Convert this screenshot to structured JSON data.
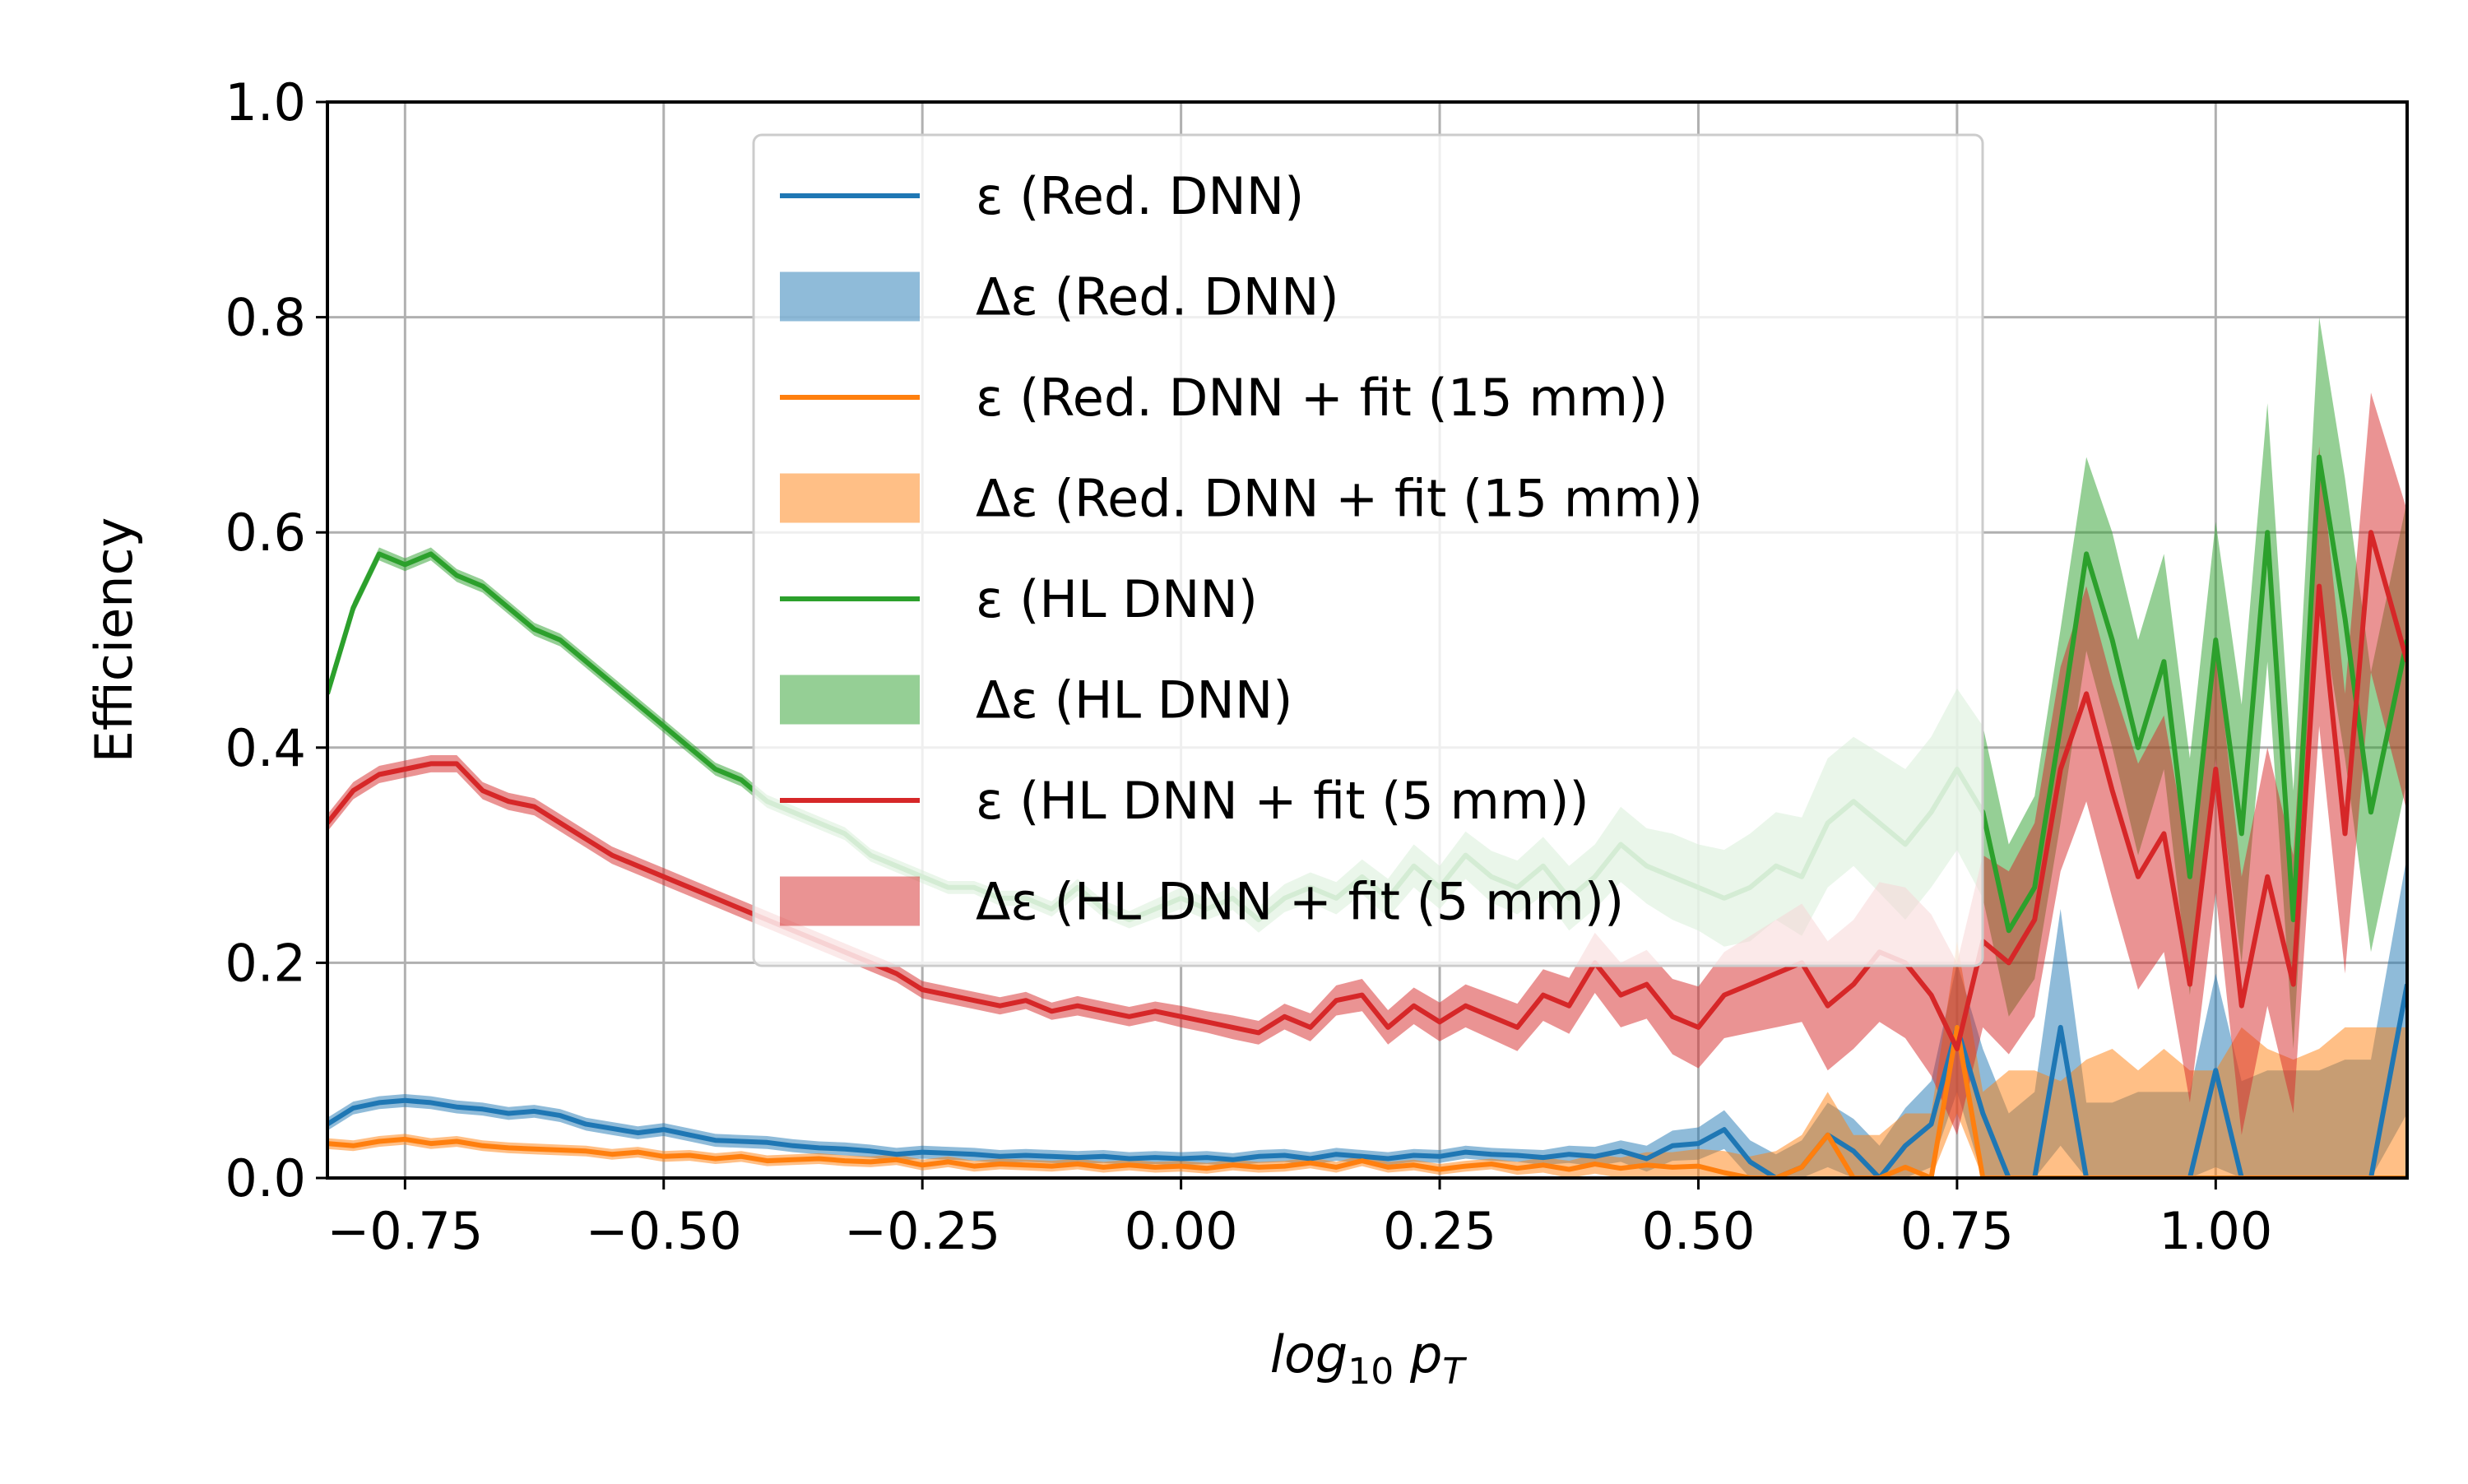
{
  "chart_data": {
    "type": "line",
    "xlabel": "log10 pT",
    "xlabel_parts": {
      "base": "log",
      "sub": "10",
      "var": "p",
      "var_sub": "T"
    },
    "ylabel": "Efficiency",
    "xlim": [
      -0.825,
      1.185
    ],
    "ylim": [
      0.0,
      1.0
    ],
    "xticks": [
      -0.75,
      -0.5,
      -0.25,
      0.0,
      0.25,
      0.5,
      0.75,
      1.0
    ],
    "xtick_labels": [
      "−0.75",
      "−0.50",
      "−0.25",
      "0.00",
      "0.25",
      "0.50",
      "0.75",
      "1.00"
    ],
    "yticks": [
      0.0,
      0.2,
      0.4,
      0.6,
      0.8,
      1.0
    ],
    "ytick_labels": [
      "0.0",
      "0.2",
      "0.4",
      "0.6",
      "0.8",
      "1.0"
    ],
    "grid": true,
    "legend_position": "top-center",
    "legend": [
      {
        "label": "ε (Red. DNN)",
        "kind": "line",
        "series": 0
      },
      {
        "label": "Δε (Red. DNN)",
        "kind": "band",
        "series": 0
      },
      {
        "label": "ε (Red. DNN + fit (15 mm))",
        "kind": "line",
        "series": 1
      },
      {
        "label": "Δε (Red. DNN + fit (15 mm))",
        "kind": "band",
        "series": 1
      },
      {
        "label": "ε (HL DNN)",
        "kind": "line",
        "series": 2
      },
      {
        "label": "Δε (HL DNN)",
        "kind": "band",
        "series": 2
      },
      {
        "label": "ε (HL DNN + fit (5 mm))",
        "kind": "line",
        "series": 3
      },
      {
        "label": "Δε (HL DNN + fit (5 mm))",
        "kind": "band",
        "series": 3
      }
    ],
    "series": [
      {
        "name": "Red. DNN",
        "color": "#1f77b4",
        "band_color": "#1f77b4",
        "x": [
          -0.825,
          -0.8,
          -0.775,
          -0.75,
          -0.725,
          -0.7,
          -0.675,
          -0.65,
          -0.625,
          -0.6,
          -0.575,
          -0.55,
          -0.525,
          -0.5,
          -0.475,
          -0.45,
          -0.425,
          -0.4,
          -0.375,
          -0.35,
          -0.325,
          -0.3,
          -0.275,
          -0.25,
          -0.225,
          -0.2,
          -0.175,
          -0.15,
          -0.125,
          -0.1,
          -0.075,
          -0.05,
          -0.025,
          0.0,
          0.025,
          0.05,
          0.075,
          0.1,
          0.125,
          0.15,
          0.175,
          0.2,
          0.225,
          0.25,
          0.275,
          0.3,
          0.325,
          0.35,
          0.375,
          0.4,
          0.425,
          0.45,
          0.475,
          0.5,
          0.525,
          0.55,
          0.575,
          0.6,
          0.625,
          0.65,
          0.675,
          0.7,
          0.725,
          0.75,
          0.775,
          0.8,
          0.825,
          0.85,
          0.875,
          0.9,
          0.925,
          0.95,
          0.975,
          1.0,
          1.025,
          1.05,
          1.075,
          1.1,
          1.125,
          1.15,
          1.185
        ],
        "values": [
          0.05,
          0.065,
          0.07,
          0.072,
          0.07,
          0.066,
          0.064,
          0.06,
          0.062,
          0.058,
          0.05,
          0.046,
          0.042,
          0.045,
          0.04,
          0.035,
          0.034,
          0.033,
          0.03,
          0.028,
          0.027,
          0.025,
          0.022,
          0.024,
          0.023,
          0.022,
          0.02,
          0.021,
          0.02,
          0.019,
          0.02,
          0.018,
          0.019,
          0.018,
          0.019,
          0.017,
          0.02,
          0.021,
          0.018,
          0.022,
          0.02,
          0.018,
          0.021,
          0.02,
          0.024,
          0.022,
          0.021,
          0.019,
          0.022,
          0.02,
          0.025,
          0.018,
          0.03,
          0.032,
          0.045,
          0.015,
          0.0,
          0.01,
          0.04,
          0.025,
          0.0,
          0.03,
          0.05,
          0.14,
          0.06,
          0.0,
          0.0,
          0.14,
          0.0,
          0.0,
          0.0,
          0.0,
          0.0,
          0.1,
          0.0,
          0.0,
          0.0,
          0.0,
          0.0,
          0.0,
          0.18
        ],
        "err": [
          0.006,
          0.006,
          0.006,
          0.006,
          0.006,
          0.006,
          0.006,
          0.006,
          0.006,
          0.006,
          0.006,
          0.006,
          0.006,
          0.006,
          0.006,
          0.006,
          0.006,
          0.006,
          0.006,
          0.006,
          0.006,
          0.006,
          0.006,
          0.006,
          0.006,
          0.006,
          0.006,
          0.006,
          0.006,
          0.006,
          0.006,
          0.006,
          0.006,
          0.006,
          0.006,
          0.006,
          0.006,
          0.006,
          0.006,
          0.006,
          0.006,
          0.006,
          0.006,
          0.006,
          0.006,
          0.006,
          0.006,
          0.007,
          0.008,
          0.009,
          0.01,
          0.012,
          0.014,
          0.015,
          0.018,
          0.02,
          0.022,
          0.025,
          0.03,
          0.03,
          0.03,
          0.035,
          0.04,
          0.06,
          0.06,
          0.06,
          0.08,
          0.11,
          0.07,
          0.07,
          0.08,
          0.08,
          0.08,
          0.09,
          0.09,
          0.1,
          0.1,
          0.1,
          0.11,
          0.11,
          0.12
        ]
      },
      {
        "name": "Red. DNN + fit (15 mm)",
        "color": "#ff7f0e",
        "band_color": "#ff7f0e",
        "x": [
          -0.825,
          -0.8,
          -0.775,
          -0.75,
          -0.725,
          -0.7,
          -0.675,
          -0.65,
          -0.625,
          -0.6,
          -0.575,
          -0.55,
          -0.525,
          -0.5,
          -0.475,
          -0.45,
          -0.425,
          -0.4,
          -0.375,
          -0.35,
          -0.325,
          -0.3,
          -0.275,
          -0.25,
          -0.225,
          -0.2,
          -0.175,
          -0.15,
          -0.125,
          -0.1,
          -0.075,
          -0.05,
          -0.025,
          0.0,
          0.025,
          0.05,
          0.075,
          0.1,
          0.125,
          0.15,
          0.175,
          0.2,
          0.225,
          0.25,
          0.275,
          0.3,
          0.325,
          0.35,
          0.375,
          0.4,
          0.425,
          0.45,
          0.475,
          0.5,
          0.525,
          0.55,
          0.575,
          0.6,
          0.625,
          0.65,
          0.675,
          0.7,
          0.725,
          0.75,
          0.775,
          0.8,
          0.825,
          0.85,
          0.875,
          0.9,
          0.925,
          0.95,
          0.975,
          1.0,
          1.025,
          1.05,
          1.075,
          1.1,
          1.125,
          1.15,
          1.185
        ],
        "values": [
          0.032,
          0.03,
          0.034,
          0.036,
          0.032,
          0.034,
          0.03,
          0.028,
          0.027,
          0.026,
          0.025,
          0.022,
          0.024,
          0.02,
          0.021,
          0.018,
          0.02,
          0.016,
          0.017,
          0.018,
          0.016,
          0.015,
          0.017,
          0.012,
          0.015,
          0.011,
          0.013,
          0.012,
          0.011,
          0.013,
          0.01,
          0.012,
          0.01,
          0.011,
          0.009,
          0.012,
          0.01,
          0.011,
          0.014,
          0.01,
          0.016,
          0.01,
          0.012,
          0.008,
          0.011,
          0.013,
          0.009,
          0.012,
          0.008,
          0.013,
          0.009,
          0.012,
          0.01,
          0.011,
          0.005,
          0.0,
          0.0,
          0.01,
          0.04,
          0.0,
          0.0,
          0.01,
          0.0,
          0.14,
          0.0,
          0.0,
          0.0,
          0.0,
          0.0,
          0.0,
          0.0,
          0.0,
          0.0,
          0.0,
          0.0,
          0.0,
          0.0,
          0.0,
          0.0,
          0.0,
          0.0
        ],
        "err": [
          0.005,
          0.005,
          0.005,
          0.005,
          0.005,
          0.005,
          0.005,
          0.005,
          0.005,
          0.005,
          0.005,
          0.005,
          0.005,
          0.005,
          0.005,
          0.005,
          0.005,
          0.005,
          0.005,
          0.005,
          0.005,
          0.005,
          0.005,
          0.005,
          0.005,
          0.005,
          0.005,
          0.005,
          0.005,
          0.005,
          0.005,
          0.005,
          0.005,
          0.005,
          0.005,
          0.005,
          0.005,
          0.005,
          0.005,
          0.005,
          0.005,
          0.005,
          0.005,
          0.005,
          0.005,
          0.005,
          0.006,
          0.007,
          0.008,
          0.009,
          0.01,
          0.012,
          0.014,
          0.016,
          0.02,
          0.02,
          0.025,
          0.03,
          0.04,
          0.04,
          0.04,
          0.05,
          0.06,
          0.08,
          0.08,
          0.1,
          0.1,
          0.09,
          0.11,
          0.12,
          0.1,
          0.12,
          0.1,
          0.1,
          0.14,
          0.12,
          0.11,
          0.12,
          0.14,
          0.14,
          0.14
        ]
      },
      {
        "name": "HL DNN",
        "color": "#2ca02c",
        "band_color": "#2ca02c",
        "x": [
          -0.825,
          -0.8,
          -0.775,
          -0.75,
          -0.725,
          -0.7,
          -0.675,
          -0.65,
          -0.625,
          -0.6,
          -0.575,
          -0.55,
          -0.525,
          -0.5,
          -0.475,
          -0.45,
          -0.425,
          -0.4,
          -0.375,
          -0.35,
          -0.325,
          -0.3,
          -0.275,
          -0.25,
          -0.225,
          -0.2,
          -0.175,
          -0.15,
          -0.125,
          -0.1,
          -0.075,
          -0.05,
          -0.025,
          0.0,
          0.025,
          0.05,
          0.075,
          0.1,
          0.125,
          0.15,
          0.175,
          0.2,
          0.225,
          0.25,
          0.275,
          0.3,
          0.325,
          0.35,
          0.375,
          0.4,
          0.425,
          0.45,
          0.475,
          0.5,
          0.525,
          0.55,
          0.575,
          0.6,
          0.625,
          0.65,
          0.675,
          0.7,
          0.725,
          0.75,
          0.775,
          0.8,
          0.825,
          0.85,
          0.875,
          0.9,
          0.925,
          0.95,
          0.975,
          1.0,
          1.025,
          1.05,
          1.075,
          1.1,
          1.125,
          1.15,
          1.185
        ],
        "values": [
          0.45,
          0.53,
          0.58,
          0.57,
          0.58,
          0.56,
          0.55,
          0.53,
          0.51,
          0.5,
          0.48,
          0.46,
          0.44,
          0.42,
          0.4,
          0.38,
          0.37,
          0.35,
          0.34,
          0.33,
          0.32,
          0.3,
          0.29,
          0.28,
          0.27,
          0.27,
          0.26,
          0.26,
          0.25,
          0.27,
          0.25,
          0.24,
          0.25,
          0.26,
          0.25,
          0.26,
          0.24,
          0.26,
          0.27,
          0.26,
          0.28,
          0.26,
          0.29,
          0.27,
          0.3,
          0.28,
          0.27,
          0.29,
          0.26,
          0.28,
          0.31,
          0.29,
          0.28,
          0.27,
          0.26,
          0.27,
          0.29,
          0.28,
          0.33,
          0.35,
          0.33,
          0.31,
          0.34,
          0.38,
          0.34,
          0.23,
          0.27,
          0.42,
          0.58,
          0.5,
          0.4,
          0.48,
          0.28,
          0.5,
          0.32,
          0.6,
          0.24,
          0.67,
          0.52,
          0.34,
          0.5
        ],
        "err": [
          0.006,
          0.006,
          0.006,
          0.006,
          0.006,
          0.006,
          0.006,
          0.006,
          0.006,
          0.006,
          0.006,
          0.006,
          0.006,
          0.006,
          0.006,
          0.006,
          0.006,
          0.006,
          0.006,
          0.006,
          0.006,
          0.006,
          0.006,
          0.006,
          0.006,
          0.006,
          0.007,
          0.007,
          0.007,
          0.008,
          0.008,
          0.008,
          0.009,
          0.01,
          0.01,
          0.011,
          0.012,
          0.013,
          0.014,
          0.015,
          0.016,
          0.018,
          0.02,
          0.02,
          0.022,
          0.024,
          0.025,
          0.027,
          0.03,
          0.03,
          0.035,
          0.035,
          0.04,
          0.04,
          0.045,
          0.05,
          0.05,
          0.055,
          0.06,
          0.06,
          0.065,
          0.07,
          0.07,
          0.075,
          0.08,
          0.08,
          0.085,
          0.09,
          0.09,
          0.1,
          0.1,
          0.1,
          0.11,
          0.11,
          0.12,
          0.12,
          0.12,
          0.13,
          0.13,
          0.13,
          0.13
        ]
      },
      {
        "name": "HL DNN + fit (5 mm)",
        "color": "#d62728",
        "band_color": "#d62728",
        "x": [
          -0.825,
          -0.8,
          -0.775,
          -0.75,
          -0.725,
          -0.7,
          -0.675,
          -0.65,
          -0.625,
          -0.6,
          -0.575,
          -0.55,
          -0.525,
          -0.5,
          -0.475,
          -0.45,
          -0.425,
          -0.4,
          -0.375,
          -0.35,
          -0.325,
          -0.3,
          -0.275,
          -0.25,
          -0.225,
          -0.2,
          -0.175,
          -0.15,
          -0.125,
          -0.1,
          -0.075,
          -0.05,
          -0.025,
          0.0,
          0.025,
          0.05,
          0.075,
          0.1,
          0.125,
          0.15,
          0.175,
          0.2,
          0.225,
          0.25,
          0.275,
          0.3,
          0.325,
          0.35,
          0.375,
          0.4,
          0.425,
          0.45,
          0.475,
          0.5,
          0.525,
          0.55,
          0.575,
          0.6,
          0.625,
          0.65,
          0.675,
          0.7,
          0.725,
          0.75,
          0.775,
          0.8,
          0.825,
          0.85,
          0.875,
          0.9,
          0.925,
          0.95,
          0.975,
          1.0,
          1.025,
          1.05,
          1.075,
          1.1,
          1.125,
          1.15,
          1.185
        ],
        "values": [
          0.33,
          0.36,
          0.375,
          0.38,
          0.385,
          0.385,
          0.36,
          0.35,
          0.345,
          0.33,
          0.315,
          0.3,
          0.29,
          0.28,
          0.27,
          0.26,
          0.25,
          0.24,
          0.23,
          0.22,
          0.21,
          0.2,
          0.19,
          0.175,
          0.17,
          0.165,
          0.16,
          0.165,
          0.155,
          0.16,
          0.155,
          0.15,
          0.155,
          0.15,
          0.145,
          0.14,
          0.135,
          0.15,
          0.14,
          0.165,
          0.17,
          0.14,
          0.16,
          0.145,
          0.16,
          0.15,
          0.14,
          0.17,
          0.16,
          0.2,
          0.17,
          0.18,
          0.15,
          0.14,
          0.17,
          0.18,
          0.19,
          0.2,
          0.16,
          0.18,
          0.21,
          0.2,
          0.17,
          0.12,
          0.22,
          0.2,
          0.24,
          0.38,
          0.45,
          0.36,
          0.28,
          0.32,
          0.18,
          0.38,
          0.16,
          0.28,
          0.18,
          0.55,
          0.32,
          0.6,
          0.48
        ],
        "err": [
          0.008,
          0.008,
          0.008,
          0.008,
          0.008,
          0.008,
          0.008,
          0.008,
          0.008,
          0.008,
          0.008,
          0.008,
          0.008,
          0.008,
          0.008,
          0.008,
          0.008,
          0.008,
          0.008,
          0.008,
          0.008,
          0.008,
          0.008,
          0.008,
          0.008,
          0.008,
          0.008,
          0.008,
          0.008,
          0.009,
          0.009,
          0.009,
          0.009,
          0.01,
          0.01,
          0.011,
          0.011,
          0.012,
          0.013,
          0.014,
          0.015,
          0.016,
          0.017,
          0.018,
          0.02,
          0.021,
          0.022,
          0.024,
          0.026,
          0.028,
          0.03,
          0.032,
          0.035,
          0.038,
          0.04,
          0.045,
          0.05,
          0.055,
          0.06,
          0.06,
          0.065,
          0.07,
          0.075,
          0.08,
          0.08,
          0.085,
          0.09,
          0.095,
          0.1,
          0.1,
          0.105,
          0.11,
          0.11,
          0.115,
          0.12,
          0.12,
          0.12,
          0.13,
          0.13,
          0.13,
          0.14
        ]
      }
    ]
  }
}
